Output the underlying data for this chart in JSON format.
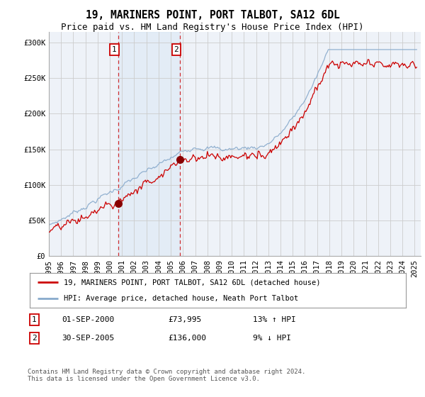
{
  "title": "19, MARINERS POINT, PORT TALBOT, SA12 6DL",
  "subtitle": "Price paid vs. HM Land Registry's House Price Index (HPI)",
  "ylabel_ticks": [
    "£0",
    "£50K",
    "£100K",
    "£150K",
    "£200K",
    "£250K",
    "£300K"
  ],
  "ylim": [
    0,
    315000
  ],
  "yticks": [
    0,
    50000,
    100000,
    150000,
    200000,
    250000,
    300000
  ],
  "marker1_year": 2000.667,
  "marker1_value": 73995,
  "marker2_year": 2005.75,
  "marker2_value": 136000,
  "legend_line1": "19, MARINERS POINT, PORT TALBOT, SA12 6DL (detached house)",
  "legend_line2": "HPI: Average price, detached house, Neath Port Talbot",
  "footer": "Contains HM Land Registry data © Crown copyright and database right 2024.\nThis data is licensed under the Open Government Licence v3.0.",
  "line1_color": "#cc0000",
  "line2_color": "#88aacc",
  "marker_color": "#880000",
  "vline_color": "#cc0000",
  "grid_color": "#cccccc",
  "bg_color": "#ffffff",
  "plot_bg_color": "#eef2f8",
  "title_fontsize": 10.5,
  "subtitle_fontsize": 9,
  "tick_fontsize": 7.5,
  "ann1_date": "01-SEP-2000",
  "ann1_price": "£73,995",
  "ann1_hpi": "13% ↑ HPI",
  "ann2_date": "30-SEP-2005",
  "ann2_price": "£136,000",
  "ann2_hpi": "9% ↓ HPI"
}
